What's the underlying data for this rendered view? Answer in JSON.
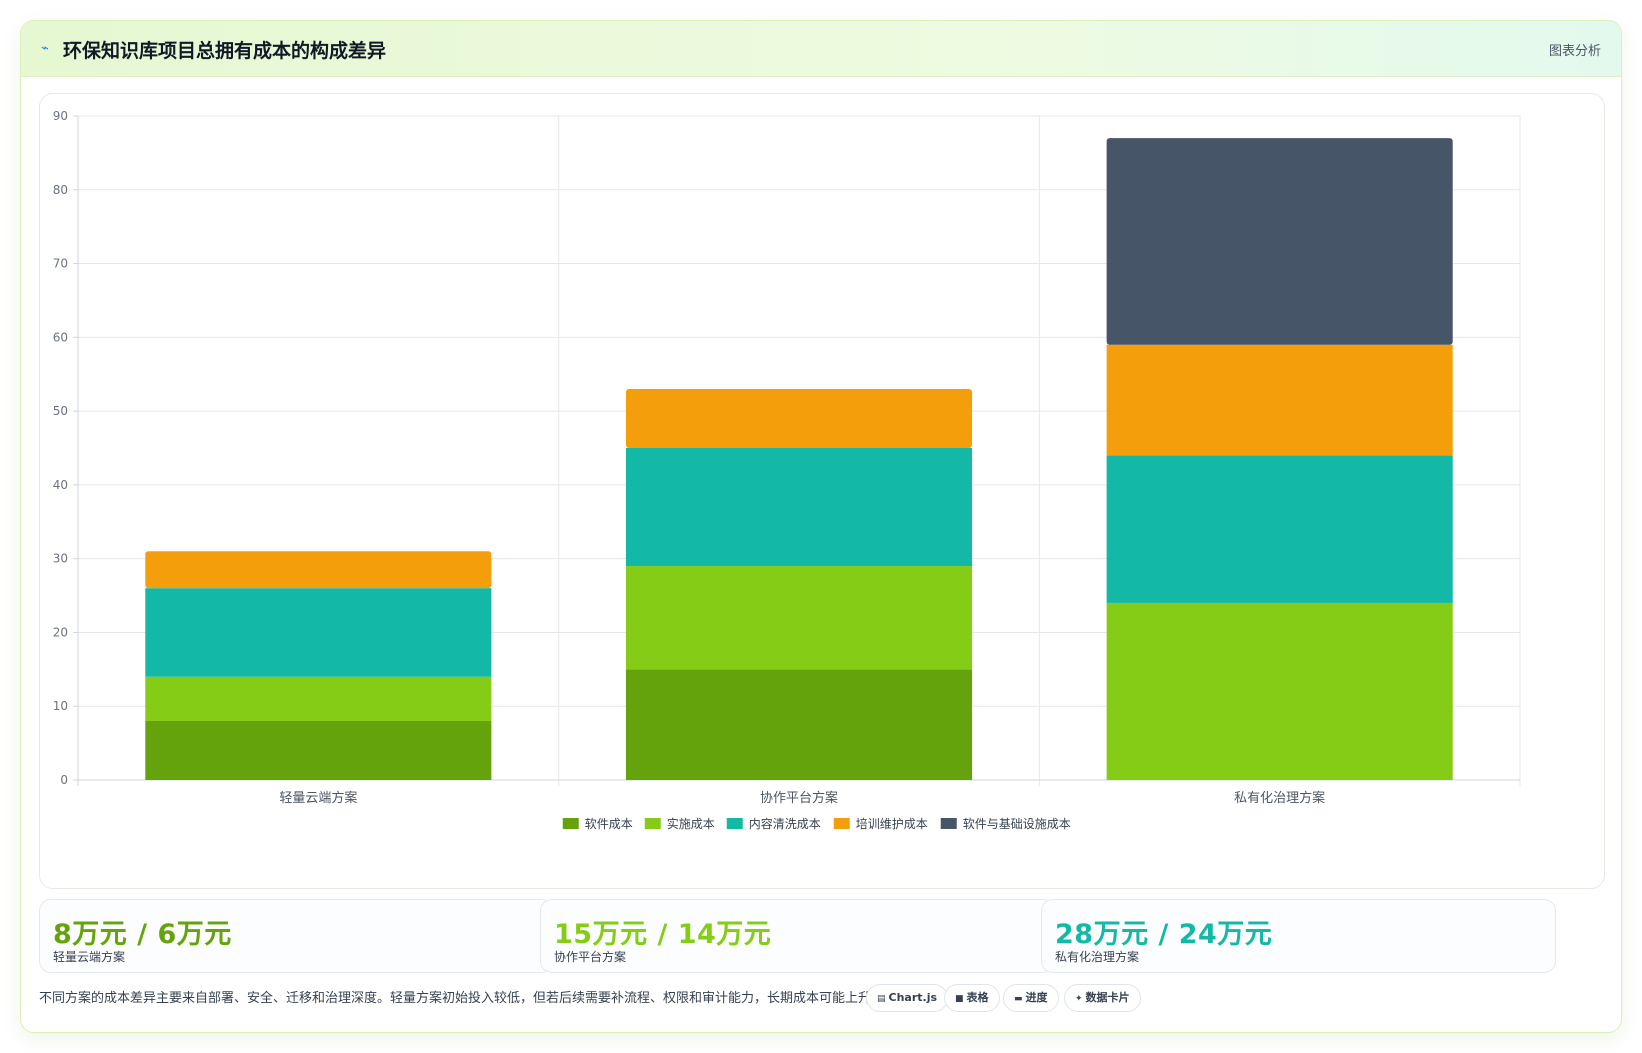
{
  "header": {
    "icon": "line-chart-icon",
    "title": "环保知识库项目总拥有成本的构成差异",
    "tag": "图表分析"
  },
  "chart_data": {
    "type": "bar",
    "stacked": true,
    "categories": [
      "轻量云端方案",
      "协作平台方案",
      "私有化治理方案"
    ],
    "series": [
      {
        "name": "软件成本",
        "color": "#65a30d",
        "values": [
          8,
          15,
          0
        ]
      },
      {
        "name": "实施成本",
        "color": "#84cc16",
        "values": [
          6,
          14,
          24
        ]
      },
      {
        "name": "内容清洗成本",
        "color": "#14b8a6",
        "values": [
          12,
          16,
          20
        ]
      },
      {
        "name": "培训维护成本",
        "color": "#f59e0b",
        "values": [
          5,
          8,
          15
        ]
      },
      {
        "name": "软件与基础设施成本",
        "color": "#475569",
        "values": [
          0,
          0,
          28
        ]
      }
    ],
    "ylim": [
      0,
      90
    ],
    "yticks": [
      0,
      10,
      20,
      30,
      40,
      50,
      60,
      70,
      80,
      90
    ],
    "grid": true,
    "legend": "bottom"
  },
  "stats": [
    {
      "value": "8万元 / 6万元",
      "label": "轻量云端方案",
      "color": "#65a30d"
    },
    {
      "value": "15万元 / 14万元",
      "label": "协作平台方案",
      "color": "#84cc16"
    },
    {
      "value": "28万元 / 24万元",
      "label": "私有化治理方案",
      "color": "#14b8a6"
    }
  ],
  "note": "不同方案的成本差异主要来自部署、安全、迁移和治理深度。轻量方案初始投入较低，但若后续需要补流程、权限和审计能力，长期成本可能上升。",
  "chips": [
    {
      "icon": "chart-icon",
      "glyph": "▤",
      "label": "Chart.js"
    },
    {
      "icon": "table-icon",
      "glyph": "■",
      "label": "表格"
    },
    {
      "icon": "progress-icon",
      "glyph": "▬",
      "label": "进度"
    },
    {
      "icon": "sparkle-icon",
      "glyph": "✦",
      "label": "数据卡片"
    }
  ]
}
